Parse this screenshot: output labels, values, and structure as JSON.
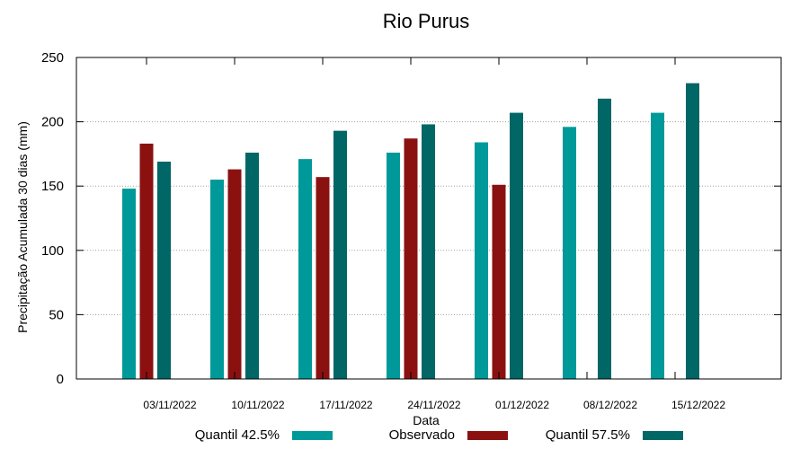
{
  "chart_data": {
    "type": "bar",
    "title": "Rio Purus",
    "xlabel": "Data",
    "ylabel": "Precipitação Acumulada 30 dias (mm)",
    "ylim": [
      0,
      250
    ],
    "yticks": [
      0,
      50,
      100,
      150,
      200,
      250
    ],
    "grid": true,
    "legend_position": "bottom",
    "categories": [
      "03/11/2022",
      "10/11/2022",
      "17/11/2022",
      "24/11/2022",
      "01/12/2022",
      "08/12/2022",
      "15/12/2022"
    ],
    "series": [
      {
        "name": "Quantil 42.5%",
        "color": "#009999",
        "values": [
          148,
          155,
          171,
          176,
          184,
          196,
          207
        ]
      },
      {
        "name": "Observado",
        "color": "#8b1111",
        "values": [
          183,
          163,
          157,
          187,
          151,
          null,
          null
        ]
      },
      {
        "name": "Quantil 57.5%",
        "color": "#006666",
        "values": [
          169,
          176,
          193,
          198,
          207,
          218,
          230
        ]
      }
    ]
  }
}
